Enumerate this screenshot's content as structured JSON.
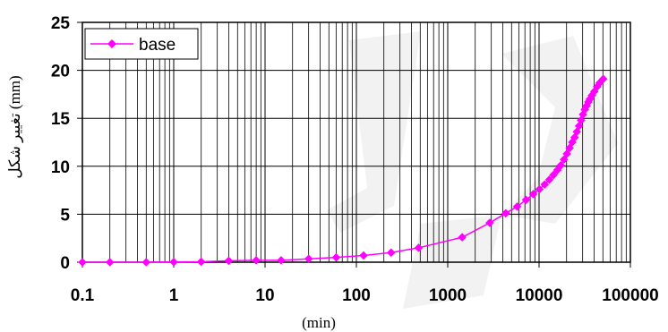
{
  "chart_data": {
    "type": "line",
    "x_scale": "log",
    "xlim": [
      0.1,
      100000
    ],
    "ylim": [
      0,
      25
    ],
    "y_step": 5,
    "x_ticks": [
      "0.1",
      "1",
      "10",
      "100",
      "1000",
      "10000",
      "100000"
    ],
    "y_ticks": [
      "0",
      "5",
      "10",
      "15",
      "20",
      "25"
    ],
    "xlabel": "(min)",
    "ylabel": "تغییر شکل (mm)",
    "grid": true,
    "legend_position": "top-left",
    "series": [
      {
        "name": "base",
        "color": "#ff00ff",
        "marker": "diamond",
        "points": [
          [
            0.1,
            0
          ],
          [
            0.2,
            0
          ],
          [
            0.5,
            0
          ],
          [
            1,
            0.02
          ],
          [
            2,
            0.05
          ],
          [
            4,
            0.15
          ],
          [
            8,
            0.2
          ],
          [
            15,
            0.2
          ],
          [
            30,
            0.35
          ],
          [
            60,
            0.5
          ],
          [
            120,
            0.7
          ],
          [
            240,
            1.0
          ],
          [
            480,
            1.5
          ],
          [
            1440,
            2.6
          ],
          [
            2880,
            4.1
          ],
          [
            4320,
            5.1
          ],
          [
            5760,
            5.8
          ],
          [
            7200,
            6.5
          ],
          [
            8640,
            7.1
          ],
          [
            10080,
            7.6
          ],
          [
            11520,
            8.1
          ],
          [
            12960,
            8.6
          ],
          [
            14400,
            9.1
          ],
          [
            15840,
            9.6
          ],
          [
            17280,
            10.1
          ],
          [
            18720,
            10.7
          ],
          [
            20160,
            11.3
          ],
          [
            21600,
            11.9
          ],
          [
            23040,
            12.5
          ],
          [
            24480,
            13.0
          ],
          [
            25920,
            13.6
          ],
          [
            27360,
            14.2
          ],
          [
            28800,
            14.8
          ],
          [
            30240,
            15.4
          ],
          [
            31680,
            15.9
          ],
          [
            33120,
            16.3
          ],
          [
            34560,
            16.7
          ],
          [
            36000,
            17.0
          ],
          [
            38000,
            17.4
          ],
          [
            40320,
            17.8
          ],
          [
            43200,
            18.3
          ],
          [
            46080,
            18.7
          ],
          [
            50400,
            19.1
          ]
        ]
      }
    ]
  }
}
